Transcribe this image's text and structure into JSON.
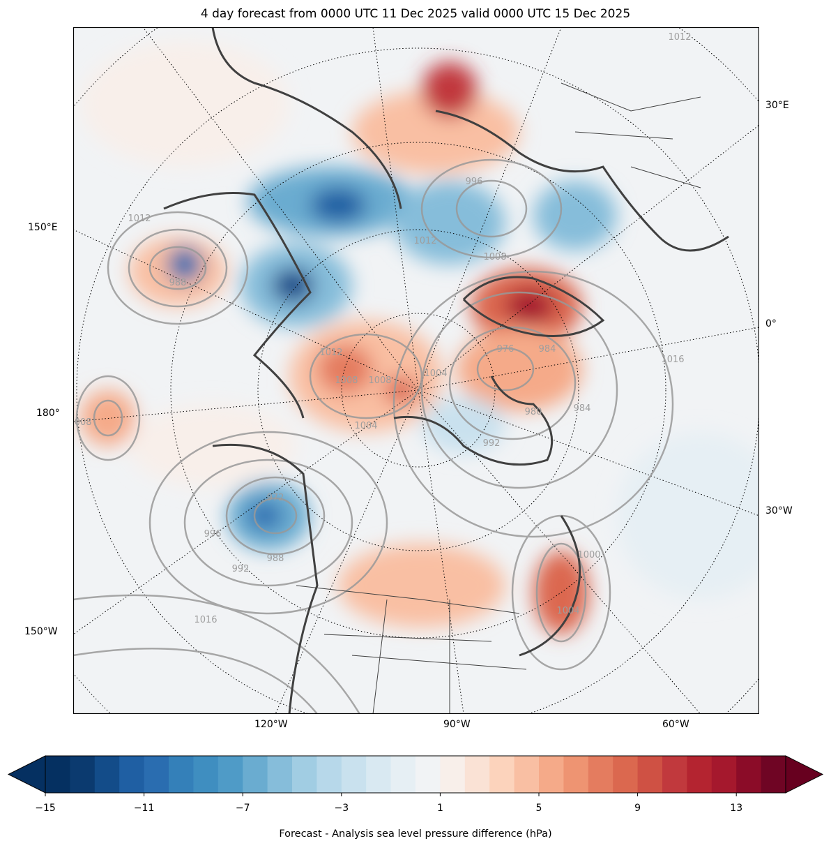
{
  "title": "4 day forecast from 0000 UTC 11 Dec 2025 valid 0000 UTC 15 Dec 2025",
  "lon_labels": {
    "left": [
      "150°E",
      "180°",
      "150°W"
    ],
    "right": [
      "30°E",
      "0°",
      "30°W"
    ],
    "bottom": [
      "120°W",
      "90°W",
      "60°W"
    ]
  },
  "contour_labels": [
    "1012",
    "1012",
    "1008",
    "1004",
    "1008",
    "996",
    "992",
    "1008",
    "1016",
    "1012",
    "976",
    "984",
    "980",
    "972",
    "988",
    "992",
    "996",
    "1016",
    "1012",
    "1008",
    "1004",
    "1000",
    "1004",
    "988",
    "984"
  ],
  "chart_data": {
    "type": "heatmap",
    "title": "4 day forecast from 0000 UTC 11 Dec 2025 valid 0000 UTC 15 Dec 2025",
    "colorbar": {
      "label": "Forecast - Analysis sea level pressure difference (hPa)",
      "range": [
        -15,
        15
      ],
      "step": 1,
      "ticks": [
        "−15",
        "−11",
        "−7",
        "−3",
        "1",
        "5",
        "9",
        "13"
      ],
      "tick_values": [
        -15,
        -11,
        -7,
        -3,
        1,
        5,
        9,
        13
      ],
      "extend": "both",
      "colors": [
        "#053061",
        "#0b3a6f",
        "#134c89",
        "#1f5fa3",
        "#2a6db0",
        "#3480b9",
        "#3f8ec0",
        "#4f9bc7",
        "#6aacd0",
        "#86bdda",
        "#a1cde3",
        "#b7d8ea",
        "#c9e1ee",
        "#d9e9f2",
        "#e6eff4",
        "#f1f3f5",
        "#f8efea",
        "#fae2d5",
        "#fcd3bc",
        "#f9bfa3",
        "#f5aa89",
        "#ee9472",
        "#e47c5f",
        "#db684f",
        "#cf5144",
        "#c1393d",
        "#b42430",
        "#a5182d",
        "#8b0c28",
        "#6f0524"
      ],
      "under_color": "#053061",
      "over_color": "#67001f"
    },
    "contour_field": "Forecast sea level pressure (hPa)",
    "contour_interval": 4
  }
}
